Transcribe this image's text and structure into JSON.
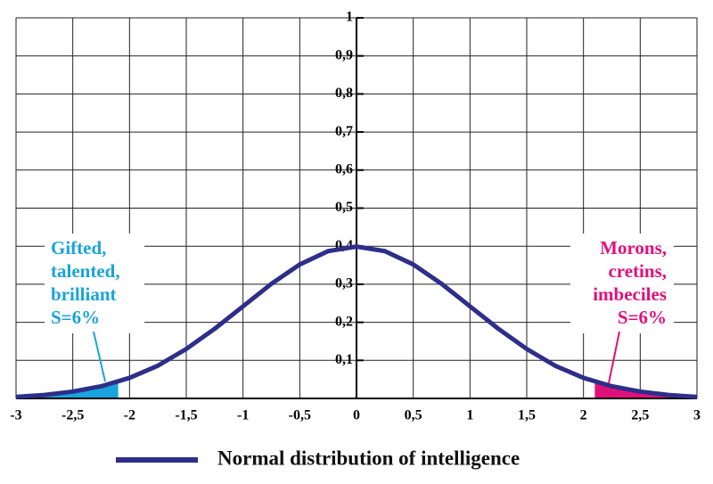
{
  "chart_data": {
    "type": "line",
    "x": [
      -3,
      -2.75,
      -2.5,
      -2.25,
      -2,
      -1.75,
      -1.5,
      -1.25,
      -1,
      -0.75,
      -0.5,
      -0.25,
      0,
      0.25,
      0.5,
      0.75,
      1,
      1.25,
      1.5,
      1.75,
      2,
      2.25,
      2.5,
      2.75,
      3
    ],
    "series": [
      {
        "name": "Normal distribution of intelligence",
        "color": "#2e2e8a",
        "values": [
          0.004,
          0.009,
          0.018,
          0.032,
          0.054,
          0.086,
          0.13,
          0.183,
          0.242,
          0.301,
          0.352,
          0.387,
          0.399,
          0.387,
          0.352,
          0.301,
          0.242,
          0.183,
          0.13,
          0.086,
          0.054,
          0.032,
          0.018,
          0.009,
          0.004
        ]
      }
    ],
    "xlim": [
      -3,
      3
    ],
    "ylim": [
      0,
      1
    ],
    "xticks": [
      -3,
      {
        "value": -2.5,
        "label": "-2,5"
      },
      -2,
      {
        "value": -1.5,
        "label": "-1,5"
      },
      -1,
      {
        "value": -0.5,
        "label": "-0,5"
      },
      0,
      {
        "value": 0.5,
        "label": "0,5"
      },
      1,
      {
        "value": 1.5,
        "label": "1,5"
      },
      2,
      {
        "value": 2.5,
        "label": "2,5"
      },
      3
    ],
    "yticks": [
      {
        "value": 0.1,
        "label": "0,1"
      },
      {
        "value": 0.2,
        "label": "0,2"
      },
      {
        "value": 0.3,
        "label": "0,3"
      },
      {
        "value": 0.4,
        "label": "0,4"
      },
      {
        "value": 0.5,
        "label": "0,5"
      },
      {
        "value": 0.6,
        "label": "0,6"
      },
      {
        "value": 0.7,
        "label": "0,7"
      },
      {
        "value": 0.8,
        "label": "0,8"
      },
      {
        "value": 0.9,
        "label": "0,9"
      },
      1
    ],
    "grid": true,
    "shaded": [
      {
        "color": "#1aa3dc",
        "x": [
          -3,
          -2.75,
          -2.5,
          -2.25,
          -2.1
        ],
        "values": [
          0.004,
          0.009,
          0.018,
          0.032,
          0.044
        ]
      },
      {
        "color": "#e0107a",
        "x": [
          2.1,
          2.25,
          2.5,
          2.75,
          3
        ],
        "values": [
          0.044,
          0.032,
          0.018,
          0.009,
          0.004
        ]
      }
    ],
    "annotations": [
      {
        "color": "#1aa3dc",
        "lines": [
          "Gifted,",
          "talented,",
          "brilliant",
          "S=6%"
        ]
      },
      {
        "color": "#e0107a",
        "lines": [
          "Morons,",
          "cretins,",
          "imbeciles",
          "S=6%"
        ]
      }
    ]
  }
}
